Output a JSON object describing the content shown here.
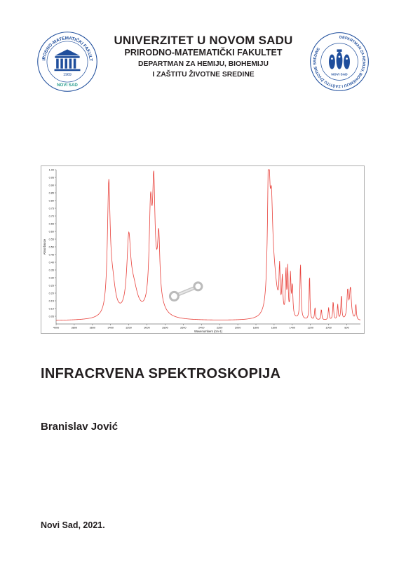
{
  "header": {
    "university": "UNIVERZITET U NOVOM SADU",
    "faculty": "PRIRODNO-MATEMATIČKI FAKULTET",
    "department_line1": "DEPARTMAN ZA HEMIJU, BIOHEMIJU",
    "department_line2": "I ZAŠTITU ŽIVOTNE SREDINE"
  },
  "logos": {
    "left": {
      "ring_text_top": "PRIRODNO-MATEMATIČKI FAKULTET",
      "year": "1969",
      "city": "NOVI SAD",
      "color": "#1f4e9c",
      "accent": "#2a9d8f"
    },
    "right": {
      "ring_text": "DEPARTMAN ZA HEMIJU, BIOHEMIJU I ZAŠTITU ŽIVOTNE SREDINE",
      "city": "NOVI SAD",
      "color": "#1f4e9c"
    }
  },
  "book": {
    "title": "INFRACRVENA SPEKTROSKOPIJA",
    "author": "Branislav Jović",
    "place_year": "Novi Sad, 2021."
  },
  "chart_data": {
    "type": "line",
    "xlabel": "Wavenumbers (cm-1)",
    "ylabel": "Absorbance",
    "xlim": [
      4000,
      650
    ],
    "ylim": [
      0,
      1.0
    ],
    "x_ticks": [
      4000,
      3800,
      3600,
      3400,
      3200,
      3000,
      2800,
      2600,
      2400,
      2200,
      2000,
      1800,
      1600,
      1400,
      1200,
      1000,
      800,
      600
    ],
    "y_ticks": [
      0.05,
      0.1,
      0.15,
      0.2,
      0.25,
      0.3,
      0.35,
      0.4,
      0.45,
      0.5,
      0.55,
      0.6,
      0.65,
      0.7,
      0.75,
      0.8,
      0.85,
      0.9,
      0.95,
      1.0
    ],
    "y_tick_labels": [
      "0.05",
      "0.10",
      "0.15",
      "0.20",
      "0.25",
      "0.30",
      "0.35",
      "0.40",
      "0.45",
      "0.50",
      "0.55",
      "0.60",
      "0.65",
      "0.70",
      "0.75",
      "0.80",
      "0.85",
      "0.90",
      "0.95",
      "1.00"
    ],
    "x_tick_labels": [
      "4000",
      "3800",
      "3600",
      "3400",
      "3200",
      "3000",
      "2800",
      "2600",
      "2400",
      "2200",
      "2000",
      "1800",
      "1600",
      "1400",
      "1200",
      "1000",
      "800",
      "600"
    ],
    "baseline": 0.02,
    "grid": false,
    "series_color": "#e8403a",
    "peaks": [
      {
        "x": 3420,
        "y": 0.8,
        "w": 18
      },
      {
        "x": 3380,
        "y": 0.2,
        "w": 40
      },
      {
        "x": 3200,
        "y": 0.44,
        "w": 25
      },
      {
        "x": 3150,
        "y": 0.18,
        "w": 60
      },
      {
        "x": 2960,
        "y": 0.6,
        "w": 18
      },
      {
        "x": 2925,
        "y": 0.64,
        "w": 15
      },
      {
        "x": 2870,
        "y": 0.36,
        "w": 14
      },
      {
        "x": 2900,
        "y": 0.2,
        "w": 60
      },
      {
        "x": 1660,
        "y": 0.98,
        "w": 14
      },
      {
        "x": 1630,
        "y": 0.55,
        "w": 18
      },
      {
        "x": 1600,
        "y": 0.22,
        "w": 40
      },
      {
        "x": 1540,
        "y": 0.27,
        "w": 7
      },
      {
        "x": 1510,
        "y": 0.22,
        "w": 7
      },
      {
        "x": 1470,
        "y": 0.28,
        "w": 6
      },
      {
        "x": 1450,
        "y": 0.3,
        "w": 6
      },
      {
        "x": 1420,
        "y": 0.26,
        "w": 6
      },
      {
        "x": 1400,
        "y": 0.2,
        "w": 8
      },
      {
        "x": 1310,
        "y": 0.36,
        "w": 7
      },
      {
        "x": 1210,
        "y": 0.3,
        "w": 5
      },
      {
        "x": 1150,
        "y": 0.08,
        "w": 6
      },
      {
        "x": 1080,
        "y": 0.07,
        "w": 6
      },
      {
        "x": 1000,
        "y": 0.08,
        "w": 6
      },
      {
        "x": 950,
        "y": 0.12,
        "w": 6
      },
      {
        "x": 900,
        "y": 0.1,
        "w": 6
      },
      {
        "x": 860,
        "y": 0.16,
        "w": 6
      },
      {
        "x": 790,
        "y": 0.18,
        "w": 10
      },
      {
        "x": 760,
        "y": 0.2,
        "w": 12
      },
      {
        "x": 700,
        "y": 0.1,
        "w": 6
      }
    ],
    "annotations": [
      {
        "type": "wrench-icon",
        "x": 2700,
        "y": 0.18
      }
    ]
  }
}
